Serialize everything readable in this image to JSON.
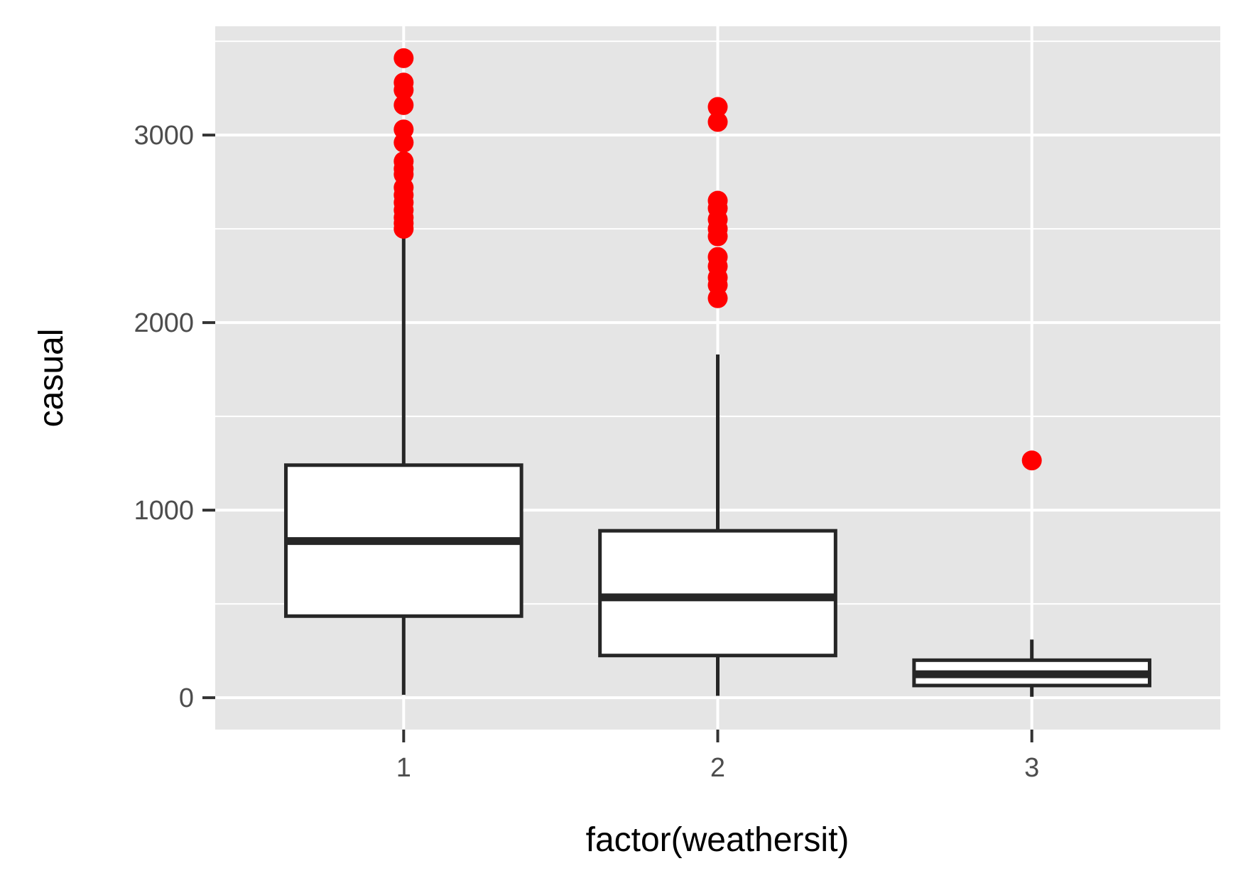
{
  "chart_data": {
    "type": "boxplot",
    "xlabel": "factor(weathersit)",
    "ylabel": "casual",
    "ylim": [
      -170,
      3580
    ],
    "y_ticks": [
      0,
      1000,
      2000,
      3000
    ],
    "y_tick_labels": [
      "0",
      "1000",
      "2000",
      "3000"
    ],
    "y_minor_ticks": [
      500,
      1500,
      2500,
      3500
    ],
    "grid": true,
    "colors": {
      "panel": "#e5e5e5",
      "grid": "#ffffff",
      "box_fill": "#ffffff",
      "box_line": "#262626",
      "outlier": "#ff0000",
      "tick_text": "#4d4d4d"
    },
    "categories": [
      "1",
      "2",
      "3"
    ],
    "boxes": [
      {
        "category": "1",
        "whisker_low": 15,
        "q1": 435,
        "median": 835,
        "q3": 1240,
        "whisker_high": 2450,
        "outliers": [
          2500,
          2530,
          2560,
          2600,
          2640,
          2680,
          2720,
          2790,
          2820,
          2860,
          2960,
          3030,
          3160,
          3240,
          3280,
          3410
        ]
      },
      {
        "category": "2",
        "whisker_low": 10,
        "q1": 225,
        "median": 535,
        "q3": 890,
        "whisker_high": 1830,
        "outliers": [
          2130,
          2200,
          2240,
          2300,
          2350,
          2460,
          2500,
          2550,
          2610,
          2650,
          3070,
          3150
        ]
      },
      {
        "category": "3",
        "whisker_low": 5,
        "q1": 65,
        "median": 125,
        "q3": 200,
        "whisker_high": 310,
        "outliers": [
          1265
        ]
      }
    ]
  }
}
